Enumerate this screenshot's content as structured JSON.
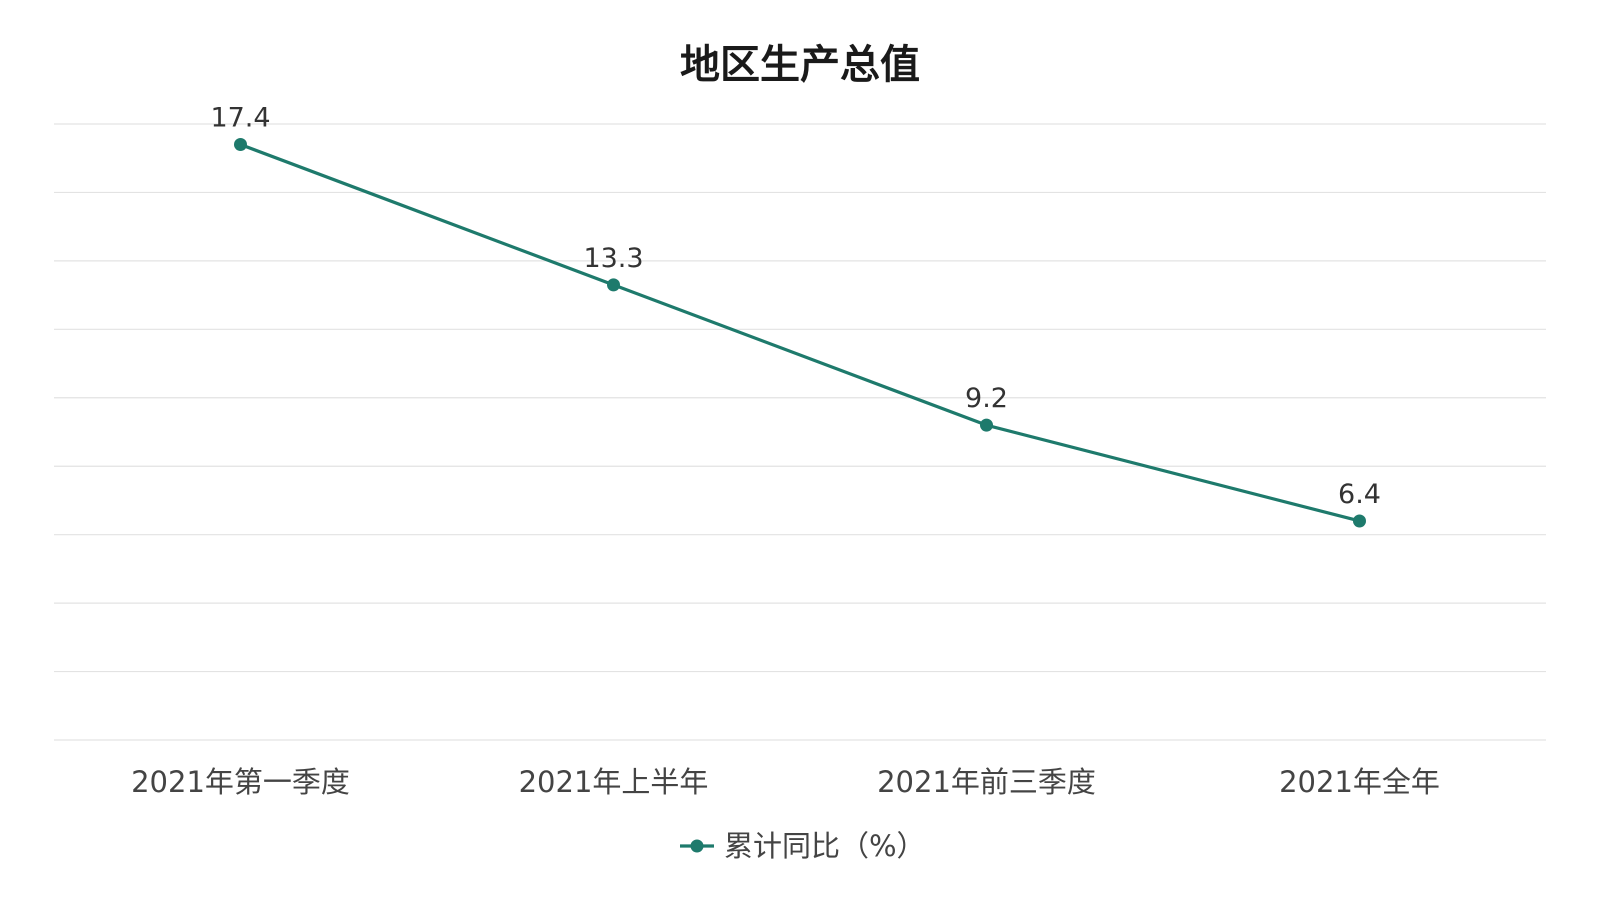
{
  "chart_data": {
    "type": "line",
    "title": "地区生产总值",
    "categories": [
      "2021年第一季度",
      "2021年上半年",
      "2021年前三季度",
      "2021年全年"
    ],
    "series": [
      {
        "name": "累计同比（%）",
        "values": [
          17.4,
          13.3,
          9.2,
          6.4
        ],
        "color": "#1e7a6c"
      }
    ],
    "ylim": [
      0,
      18
    ],
    "grid": true,
    "legend_position": "bottom-center",
    "data_labels": true
  },
  "colors": {
    "series_line": "#1e7a6c",
    "grid": "#e3e3e3",
    "text": "#444444"
  }
}
